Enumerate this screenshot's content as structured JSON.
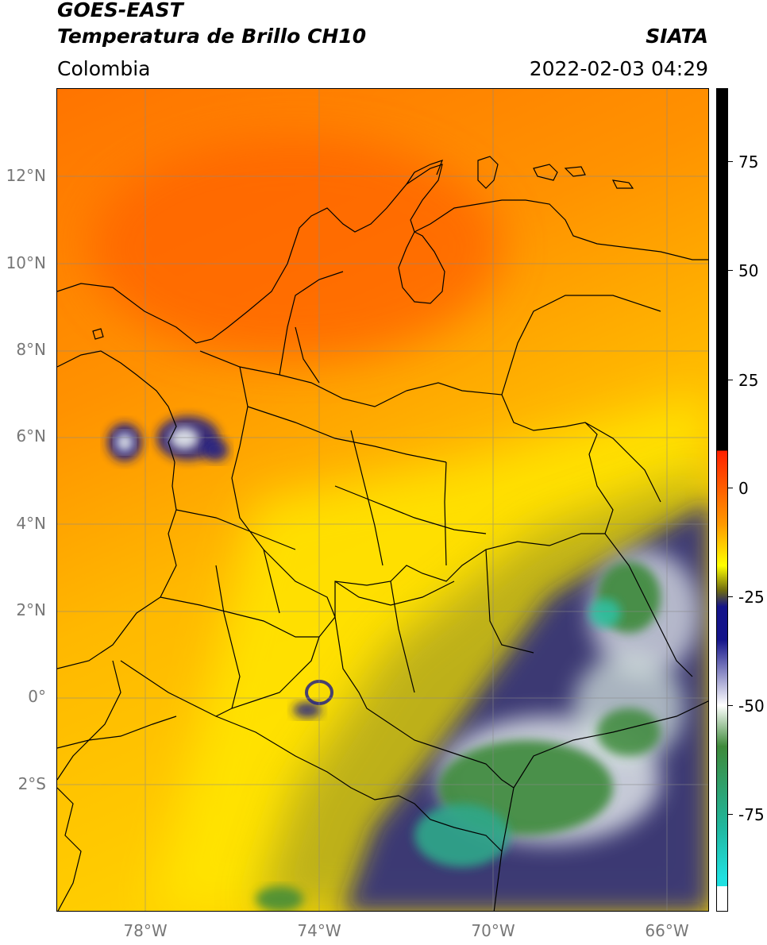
{
  "header": {
    "satellite": "GOES-EAST",
    "product": "Temperatura de Brillo CH10",
    "agency": "SIATA",
    "region": "Colombia",
    "datetime": "2022-02-03 04:29"
  },
  "map": {
    "lat_labels": [
      "12°N",
      "10°N",
      "8°N",
      "6°N",
      "4°N",
      "2°N",
      "0°",
      "2°S"
    ],
    "lon_labels": [
      "78°W",
      "74°W",
      "70°W",
      "66°W"
    ]
  },
  "colorbar": {
    "ticks": [
      "75",
      "50",
      "25",
      "0",
      "-25",
      "-50",
      "-75"
    ],
    "colors": {
      "black": "#000000",
      "red": "#ff2000",
      "orange": "#ff9a00",
      "yellow": "#ffff00",
      "olive": "#6f6b10",
      "navy": "#14148a",
      "white": "#ffffff",
      "green": "#3e8a3a",
      "teal": "#20b8a0",
      "cyan": "#20e0e0"
    }
  }
}
